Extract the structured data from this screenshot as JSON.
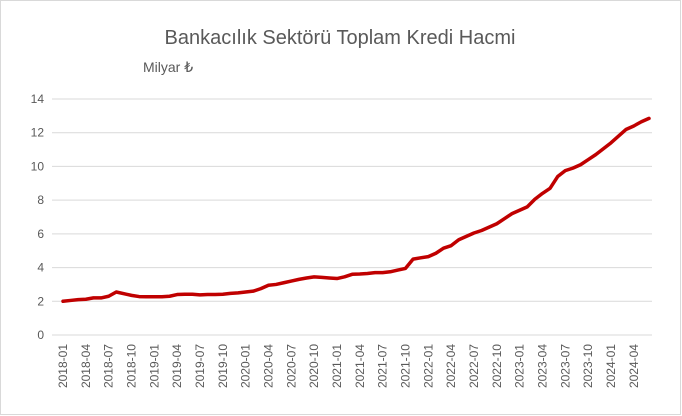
{
  "chart_data": {
    "type": "line",
    "title": "Bankacılık Sektörü Toplam Kredi Hacmi",
    "subtitle": "Milyar ₺",
    "categories": [
      "2018-01",
      null,
      null,
      "2018-04",
      null,
      null,
      "2018-07",
      null,
      null,
      "2018-10",
      null,
      null,
      "2019-01",
      null,
      null,
      "2019-04",
      null,
      null,
      "2019-07",
      null,
      null,
      "2019-10",
      null,
      null,
      "2020-01",
      null,
      null,
      "2020-04",
      null,
      null,
      "2020-07",
      null,
      null,
      "2020-10",
      null,
      null,
      "2021-01",
      null,
      null,
      "2021-04",
      null,
      null,
      "2021-07",
      null,
      null,
      "2021-10",
      null,
      null,
      "2022-01",
      null,
      null,
      "2022-04",
      null,
      null,
      "2022-07",
      null,
      null,
      "2022-10",
      null,
      null,
      "2023-01",
      null,
      null,
      "2023-04",
      null,
      null,
      "2023-07",
      null,
      null,
      "2023-10",
      null,
      null,
      "2024-01",
      null,
      null,
      "2024-04",
      null,
      null
    ],
    "series": [
      {
        "name": "Toplam Kredi",
        "color": "#c00000",
        "values": [
          2.0,
          2.05,
          2.1,
          2.12,
          2.2,
          2.2,
          2.3,
          2.55,
          2.45,
          2.35,
          2.28,
          2.27,
          2.27,
          2.27,
          2.3,
          2.4,
          2.42,
          2.42,
          2.38,
          2.4,
          2.4,
          2.42,
          2.47,
          2.5,
          2.55,
          2.6,
          2.75,
          2.95,
          3.0,
          3.1,
          3.2,
          3.3,
          3.38,
          3.45,
          3.42,
          3.38,
          3.35,
          3.45,
          3.6,
          3.62,
          3.65,
          3.7,
          3.7,
          3.75,
          3.85,
          3.95,
          4.5,
          4.58,
          4.65,
          4.85,
          5.15,
          5.3,
          5.65,
          5.85,
          6.05,
          6.2,
          6.4,
          6.6,
          6.9,
          7.2,
          7.4,
          7.6,
          8.05,
          8.4,
          8.7,
          9.4,
          9.75,
          9.9,
          10.1,
          10.4,
          10.7,
          11.05,
          11.4,
          11.8,
          12.2,
          12.4,
          12.65,
          12.85
        ]
      }
    ],
    "ylim": [
      0,
      14
    ],
    "yticks": [
      0,
      2,
      4,
      6,
      8,
      10,
      12,
      14
    ],
    "grid": true
  }
}
